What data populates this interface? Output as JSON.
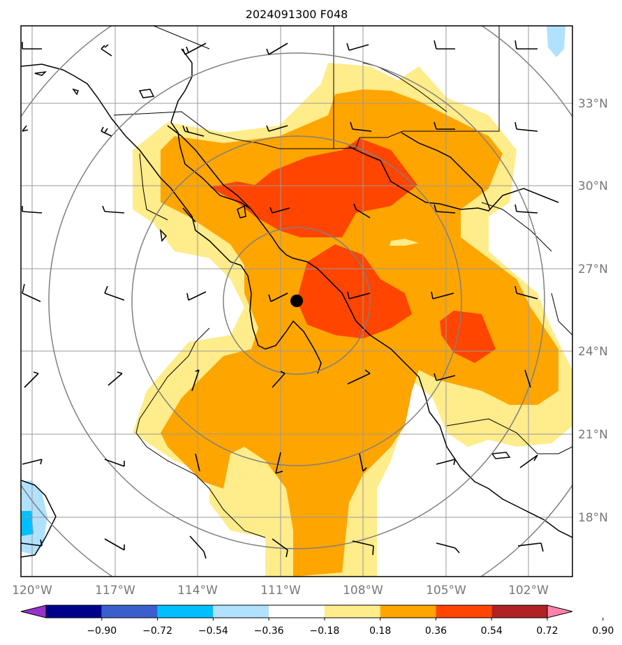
{
  "title": "2024091300 F048",
  "lon_labels": [
    "120°W",
    "117°W",
    "114°W",
    "111°W",
    "108°W",
    "105°W",
    "102°W"
  ],
  "lat_labels": [
    "33°N",
    "30°N",
    "27°N",
    "24°N",
    "21°N",
    "18°N"
  ],
  "colorbar": {
    "labels": [
      "−0.90",
      "−0.72",
      "−0.54",
      "−0.36",
      "−0.18",
      "0.18",
      "0.36",
      "0.54",
      "0.72",
      "0.90"
    ],
    "colors": [
      "#9932cc",
      "#00008b",
      "#3a5fcd",
      "#00bfff",
      "#b0e2ff",
      "#ffffff",
      "#ffec8b",
      "#ffa500",
      "#ff4500",
      "#b22222",
      "#ff82ab"
    ]
  },
  "field_colors": {
    "light_yellow": "#ffec8b",
    "orange": "#ffa500",
    "red_orange": "#ff4500",
    "light_blue": "#b0e2ff",
    "blue": "#00bfff"
  },
  "center_marker": {
    "lon": -110.4,
    "lat": 25.8
  },
  "range_rings": "concentric circles around storm center"
}
